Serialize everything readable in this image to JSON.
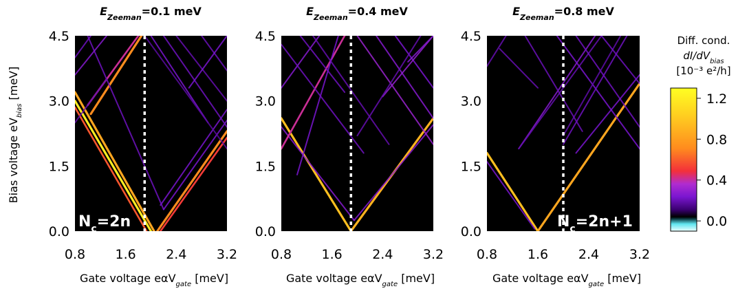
{
  "figure": {
    "ylabel": "Bias voltage  eV",
    "ylabel_sub": "bias",
    "ylabel_unit": " [meV]",
    "colorbar": {
      "line1": "Diff. cond.",
      "line2_main": "dI/dV",
      "line2_sub": "bias",
      "line3": "[10⁻³ e²/h]",
      "ticks": [
        "1.2",
        "0.8",
        "0.4",
        "0.0"
      ],
      "tick_values": [
        1.2,
        0.8,
        0.4,
        0.0
      ]
    }
  },
  "chart_data": [
    {
      "type": "heatmap",
      "title_main": "E",
      "title_sub": "Zeeman",
      "title_rest": "=0.1 meV",
      "xlabel": "Gate voltage  eαV",
      "xlabel_sub": "gate",
      "xlabel_unit": " [meV]",
      "xlim": [
        0.8,
        3.2
      ],
      "ylim": [
        0.0,
        4.5
      ],
      "xticks": [
        "0.8",
        "1.6",
        "2.4",
        "3.2"
      ],
      "xtick_values": [
        0.8,
        1.6,
        2.4,
        3.2
      ],
      "yticks": [
        "4.5",
        "3.0",
        "1.5",
        "0.0"
      ],
      "ytick_values": [
        4.5,
        3.0,
        1.5,
        0.0
      ],
      "annotation": "N",
      "annotation_sub": "c",
      "annotation_rest": "=2n",
      "dashed_line_x": 1.9,
      "lines": [
        {
          "x1": 0.8,
          "y1": 3.2,
          "x2": 2.05,
          "y2": 0.0,
          "v": 0.65
        },
        {
          "x1": 0.8,
          "y1": 3.0,
          "x2": 2.0,
          "y2": 0.0,
          "v": 1.05
        },
        {
          "x1": 0.8,
          "y1": 2.85,
          "x2": 1.93,
          "y2": 0.0,
          "v": 0.45
        },
        {
          "x1": 2.1,
          "y1": 0.0,
          "x2": 3.2,
          "y2": 2.3,
          "v": 0.55
        },
        {
          "x1": 2.15,
          "y1": 0.0,
          "x2": 3.2,
          "y2": 2.15,
          "v": 0.4
        },
        {
          "x1": 1.05,
          "y1": 2.7,
          "x2": 1.85,
          "y2": 4.5,
          "v": 0.55
        },
        {
          "x1": 1.0,
          "y1": 2.9,
          "x2": 1.8,
          "y2": 4.5,
          "v": 0.3
        },
        {
          "x1": 2.15,
          "y1": 0.6,
          "x2": 3.2,
          "y2": 2.8,
          "v": 0.12
        },
        {
          "x1": 1.0,
          "y1": 4.5,
          "x2": 2.2,
          "y2": 0.5,
          "v": 0.1
        },
        {
          "x1": 2.2,
          "y1": 0.5,
          "x2": 3.2,
          "y2": 2.55,
          "v": 0.12
        },
        {
          "x1": 0.8,
          "y1": 3.6,
          "x2": 1.3,
          "y2": 4.5,
          "v": 0.15
        },
        {
          "x1": 2.0,
          "y1": 4.5,
          "x2": 2.9,
          "y2": 2.5,
          "v": 0.12
        },
        {
          "x1": 2.2,
          "y1": 4.5,
          "x2": 3.2,
          "y2": 2.4,
          "v": 0.1
        },
        {
          "x1": 2.4,
          "y1": 4.5,
          "x2": 3.2,
          "y2": 3.0,
          "v": 0.08
        },
        {
          "x1": 2.8,
          "y1": 4.5,
          "x2": 3.2,
          "y2": 3.7,
          "v": 0.09
        },
        {
          "x1": 1.9,
          "y1": 4.5,
          "x2": 3.2,
          "y2": 1.9,
          "v": 0.06
        },
        {
          "x1": 0.8,
          "y1": 2.5,
          "x2": 1.3,
          "y2": 3.5,
          "v": 0.08
        },
        {
          "x1": 2.6,
          "y1": 3.3,
          "x2": 3.2,
          "y2": 4.5,
          "v": 0.12
        },
        {
          "x1": 0.8,
          "y1": 4.0,
          "x2": 1.05,
          "y2": 4.5,
          "v": 0.1
        }
      ]
    },
    {
      "type": "heatmap",
      "title_main": "E",
      "title_sub": "Zeeman",
      "title_rest": "=0.4 meV",
      "xlabel": "Gate voltage  eαV",
      "xlabel_sub": "gate",
      "xlabel_unit": " [meV]",
      "xlim": [
        0.8,
        3.2
      ],
      "ylim": [
        0.0,
        4.5
      ],
      "xticks": [
        "0.8",
        "1.6",
        "2.4",
        "3.2"
      ],
      "xtick_values": [
        0.8,
        1.6,
        2.4,
        3.2
      ],
      "yticks": [
        "4.5",
        "3.0",
        "1.5",
        "0.0"
      ],
      "ytick_values": [
        4.5,
        3.0,
        1.5,
        0.0
      ],
      "annotation": "",
      "annotation_sub": "",
      "annotation_rest": "",
      "dashed_line_x": 1.9,
      "lines": [
        {
          "x1": 0.8,
          "y1": 2.6,
          "x2": 1.9,
          "y2": 0.0,
          "v": 0.75
        },
        {
          "x1": 1.9,
          "y1": 0.0,
          "x2": 3.2,
          "y2": 2.6,
          "v": 0.7
        },
        {
          "x1": 0.8,
          "y1": 2.4,
          "x2": 1.95,
          "y2": 0.25,
          "v": 0.15
        },
        {
          "x1": 1.95,
          "y1": 0.25,
          "x2": 3.2,
          "y2": 2.45,
          "v": 0.15
        },
        {
          "x1": 0.8,
          "y1": 1.9,
          "x2": 1.8,
          "y2": 4.5,
          "v": 0.3
        },
        {
          "x1": 1.05,
          "y1": 1.3,
          "x2": 1.7,
          "y2": 4.5,
          "v": 0.12
        },
        {
          "x1": 0.8,
          "y1": 3.3,
          "x2": 1.4,
          "y2": 4.5,
          "v": 0.15
        },
        {
          "x1": 2.0,
          "y1": 4.5,
          "x2": 3.2,
          "y2": 2.0,
          "v": 0.2
        },
        {
          "x1": 2.3,
          "y1": 4.5,
          "x2": 3.2,
          "y2": 2.6,
          "v": 0.15
        },
        {
          "x1": 2.6,
          "y1": 4.5,
          "x2": 3.2,
          "y2": 3.3,
          "v": 0.12
        },
        {
          "x1": 2.4,
          "y1": 3.1,
          "x2": 3.2,
          "y2": 4.5,
          "v": 0.18
        },
        {
          "x1": 0.8,
          "y1": 4.3,
          "x2": 2.1,
          "y2": 1.8,
          "v": 0.1
        },
        {
          "x1": 1.3,
          "y1": 4.5,
          "x2": 2.5,
          "y2": 2.0,
          "v": 0.08
        },
        {
          "x1": 2.0,
          "y1": 2.2,
          "x2": 3.0,
          "y2": 4.5,
          "v": 0.08
        },
        {
          "x1": 1.1,
          "y1": 4.5,
          "x2": 1.8,
          "y2": 3.2,
          "v": 0.1
        },
        {
          "x1": 2.8,
          "y1": 3.9,
          "x2": 3.2,
          "y2": 4.5,
          "v": 0.15
        }
      ]
    },
    {
      "type": "heatmap",
      "title_main": "E",
      "title_sub": "Zeeman",
      "title_rest": "=0.8 meV",
      "xlabel": "Gate voltage  eαV",
      "xlabel_sub": "gate",
      "xlabel_unit": " [meV]",
      "xlim": [
        0.8,
        3.2
      ],
      "ylim": [
        0.0,
        4.5
      ],
      "xticks": [
        "0.8",
        "1.6",
        "2.4",
        "3.2"
      ],
      "xtick_values": [
        0.8,
        1.6,
        2.4,
        3.2
      ],
      "yticks": [
        "4.5",
        "3.0",
        "1.5",
        "0.0"
      ],
      "ytick_values": [
        4.5,
        3.0,
        1.5,
        0.0
      ],
      "annotation": "N",
      "annotation_sub": "c",
      "annotation_rest": "=2n+1",
      "dashed_line_x": 2.0,
      "lines": [
        {
          "x1": 0.8,
          "y1": 1.8,
          "x2": 1.6,
          "y2": 0.0,
          "v": 0.75
        },
        {
          "x1": 1.6,
          "y1": 0.0,
          "x2": 3.2,
          "y2": 3.4,
          "v": 0.65
        },
        {
          "x1": 0.8,
          "y1": 1.6,
          "x2": 1.55,
          "y2": 0.05,
          "v": 0.12
        },
        {
          "x1": 1.3,
          "y1": 1.9,
          "x2": 2.5,
          "y2": 4.5,
          "v": 0.15
        },
        {
          "x1": 1.3,
          "y1": 1.9,
          "x2": 2.6,
          "y2": 4.5,
          "v": 0.08
        },
        {
          "x1": 1.9,
          "y1": 4.5,
          "x2": 3.2,
          "y2": 1.9,
          "v": 0.12
        },
        {
          "x1": 2.0,
          "y1": 2.0,
          "x2": 3.0,
          "y2": 4.5,
          "v": 0.1
        },
        {
          "x1": 2.2,
          "y1": 4.5,
          "x2": 3.2,
          "y2": 2.4,
          "v": 0.1
        },
        {
          "x1": 2.0,
          "y1": 2.2,
          "x2": 2.9,
          "y2": 4.5,
          "v": 0.07
        },
        {
          "x1": 2.2,
          "y1": 1.8,
          "x2": 3.2,
          "y2": 3.6,
          "v": 0.12
        },
        {
          "x1": 1.4,
          "y1": 4.5,
          "x2": 2.3,
          "y2": 2.3,
          "v": 0.09
        },
        {
          "x1": 1.0,
          "y1": 4.2,
          "x2": 1.6,
          "y2": 3.3,
          "v": 0.08
        },
        {
          "x1": 0.8,
          "y1": 3.8,
          "x2": 1.1,
          "y2": 4.5,
          "v": 0.08
        },
        {
          "x1": 2.6,
          "y1": 4.5,
          "x2": 3.2,
          "y2": 3.4,
          "v": 0.1
        }
      ]
    }
  ]
}
